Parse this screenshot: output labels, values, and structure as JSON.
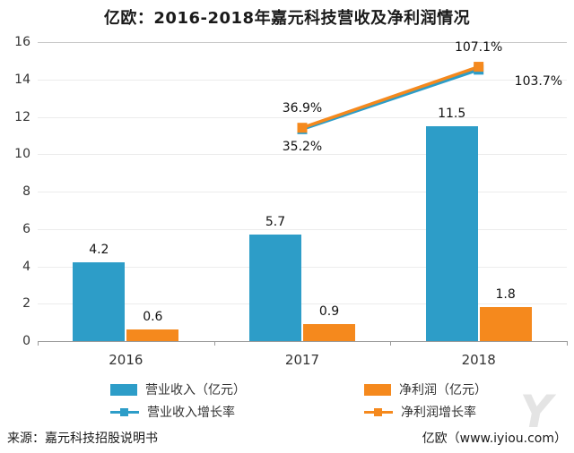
{
  "title": "亿欧：2016-2018年嘉元科技营收及净利润情况",
  "footer": {
    "source": "来源：嘉元科技招股说明书",
    "credit": "亿欧（www.iyiou.com）"
  },
  "watermark_glyph": "Y",
  "colors": {
    "revenue_blue": "#2D9DC8",
    "profit_orange": "#F5891D"
  },
  "chart_data": {
    "type": "bar+line combo",
    "categories": [
      "2016",
      "2017",
      "2018"
    ],
    "series": [
      {
        "name": "营业收入（亿元）",
        "type": "bar",
        "color": "#2D9DC8",
        "values": [
          4.2,
          5.7,
          11.5
        ],
        "value_labels": [
          "4.2",
          "5.7",
          "11.5"
        ]
      },
      {
        "name": "净利润（亿元）",
        "type": "bar",
        "color": "#F5891D",
        "values": [
          0.6,
          0.9,
          1.8
        ],
        "value_labels": [
          "0.6",
          "0.9",
          "1.8"
        ]
      },
      {
        "name": "营业收入增长率",
        "type": "line",
        "color": "#2D9DC8",
        "values": [
          null,
          35.2,
          103.7
        ],
        "point_labels": [
          "",
          "35.2%",
          "103.7%"
        ]
      },
      {
        "name": "净利润增长率",
        "type": "line",
        "color": "#F5891D",
        "values": [
          null,
          36.9,
          107.1
        ],
        "point_labels": [
          "",
          "36.9%",
          "107.1%"
        ]
      }
    ],
    "ylim": [
      0,
      16
    ],
    "yticks": [
      0,
      2,
      4,
      6,
      8,
      10,
      12,
      14,
      16
    ],
    "grid": true,
    "legend_position": "bottom"
  }
}
